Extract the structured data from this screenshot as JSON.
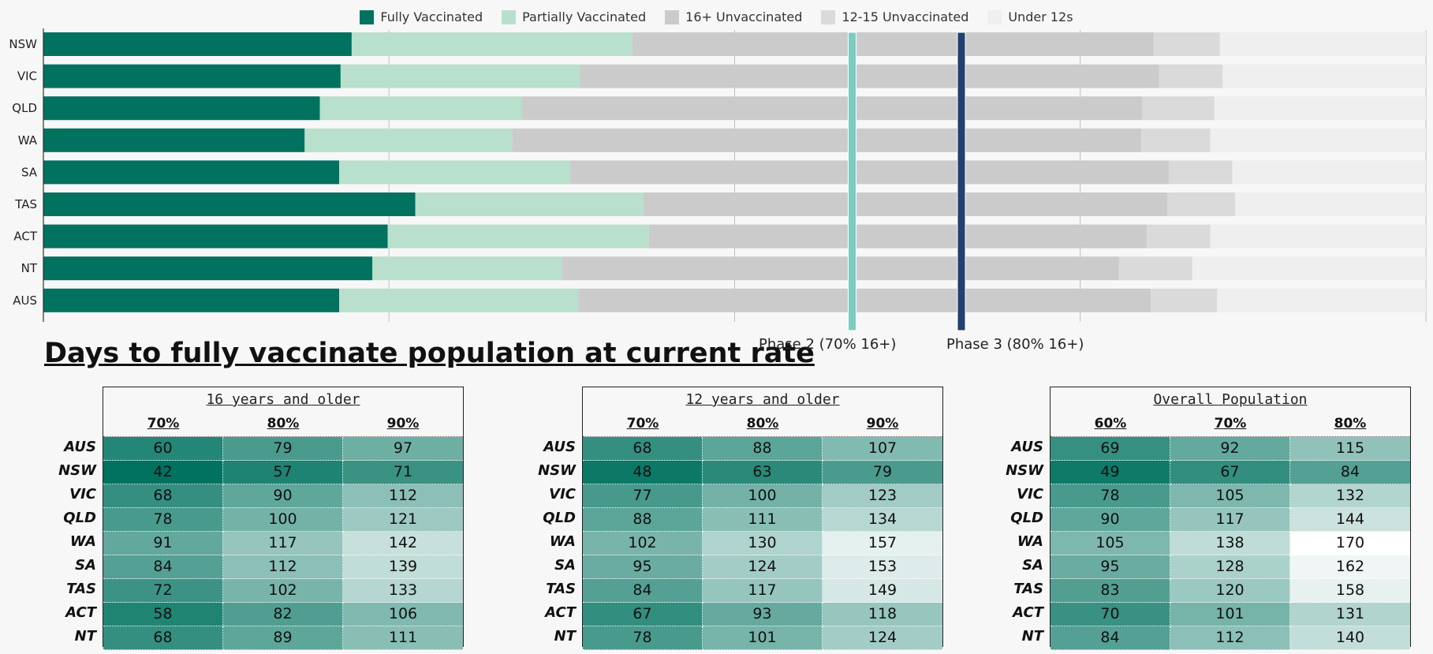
{
  "colors": {
    "fully": "#00725f",
    "partially": "#b8e0cc",
    "unvac16": "#cbcbcb",
    "unvac12": "#dadada",
    "under12": "#efefef",
    "phase2": "#7ecbc2",
    "phase3": "#23406e",
    "heat_dark": "#00725f",
    "heat_light": "#ffffff"
  },
  "legend": [
    {
      "key": "fully",
      "label": "Fully Vaccinated"
    },
    {
      "key": "partially",
      "label": "Partially Vaccinated"
    },
    {
      "key": "unvac16",
      "label": "16+ Unvaccinated"
    },
    {
      "key": "unvac12",
      "label": "12-15 Unvaccinated"
    },
    {
      "key": "under12",
      "label": "Under 12s"
    }
  ],
  "chart_data": [
    {
      "type": "bar",
      "orientation": "horizontal",
      "stacked": true,
      "categories": [
        "NSW",
        "VIC",
        "QLD",
        "WA",
        "SA",
        "TAS",
        "ACT",
        "NT",
        "AUS"
      ],
      "series": [
        {
          "name": "Fully Vaccinated",
          "values": [
            22.3,
            21.5,
            20.0,
            18.9,
            21.4,
            26.9,
            24.9,
            23.8,
            21.4
          ]
        },
        {
          "name": "Partially Vaccinated",
          "values": [
            20.3,
            17.3,
            14.6,
            15.0,
            16.7,
            16.5,
            18.9,
            13.7,
            17.3
          ]
        },
        {
          "name": "16+ Unvaccinated",
          "values": [
            37.7,
            41.9,
            44.9,
            45.5,
            43.3,
            37.9,
            36.0,
            40.3,
            41.4
          ]
        },
        {
          "name": "12-15 Unvaccinated",
          "values": [
            4.8,
            4.6,
            5.2,
            5.0,
            4.6,
            4.9,
            4.6,
            5.3,
            4.8
          ]
        },
        {
          "name": "Under 12s",
          "values": [
            14.9,
            14.7,
            15.3,
            15.6,
            14.0,
            13.8,
            15.6,
            16.9,
            15.1
          ]
        }
      ],
      "xlim": [
        0,
        100
      ],
      "grid": true,
      "reference_lines": [
        {
          "label": "Phase 2 (70% 16+)",
          "x": 58.5,
          "color_key": "phase2"
        },
        {
          "label": "Phase 3 (80% 16+)",
          "x": 66.4,
          "color_key": "phase3"
        }
      ]
    },
    {
      "type": "table",
      "title": "Days to fully vaccinate population at current rate",
      "tables": [
        {
          "header": "16 years and older",
          "columns": [
            "70%",
            "80%",
            "90%"
          ],
          "rows": [
            {
              "label": "AUS",
              "values": [
                60,
                79,
                97
              ]
            },
            {
              "label": "NSW",
              "values": [
                42,
                57,
                71
              ]
            },
            {
              "label": "VIC",
              "values": [
                68,
                90,
                112
              ]
            },
            {
              "label": "QLD",
              "values": [
                78,
                100,
                121
              ]
            },
            {
              "label": "WA",
              "values": [
                91,
                117,
                142
              ]
            },
            {
              "label": "SA",
              "values": [
                84,
                112,
                139
              ]
            },
            {
              "label": "TAS",
              "values": [
                72,
                102,
                133
              ]
            },
            {
              "label": "ACT",
              "values": [
                58,
                82,
                106
              ]
            },
            {
              "label": "NT",
              "values": [
                68,
                89,
                111
              ]
            }
          ]
        },
        {
          "header": "12 years and older",
          "columns": [
            "70%",
            "80%",
            "90%"
          ],
          "rows": [
            {
              "label": "AUS",
              "values": [
                68,
                88,
                107
              ]
            },
            {
              "label": "NSW",
              "values": [
                48,
                63,
                79
              ]
            },
            {
              "label": "VIC",
              "values": [
                77,
                100,
                123
              ]
            },
            {
              "label": "QLD",
              "values": [
                88,
                111,
                134
              ]
            },
            {
              "label": "WA",
              "values": [
                102,
                130,
                157
              ]
            },
            {
              "label": "SA",
              "values": [
                95,
                124,
                153
              ]
            },
            {
              "label": "TAS",
              "values": [
                84,
                117,
                149
              ]
            },
            {
              "label": "ACT",
              "values": [
                67,
                93,
                118
              ]
            },
            {
              "label": "NT",
              "values": [
                78,
                101,
                124
              ]
            }
          ]
        },
        {
          "header": "Overall Population",
          "columns": [
            "60%",
            "70%",
            "80%"
          ],
          "rows": [
            {
              "label": "AUS",
              "values": [
                69,
                92,
                115
              ]
            },
            {
              "label": "NSW",
              "values": [
                49,
                67,
                84
              ]
            },
            {
              "label": "VIC",
              "values": [
                78,
                105,
                132
              ]
            },
            {
              "label": "QLD",
              "values": [
                90,
                117,
                144
              ]
            },
            {
              "label": "WA",
              "values": [
                105,
                138,
                170
              ]
            },
            {
              "label": "SA",
              "values": [
                95,
                128,
                162
              ]
            },
            {
              "label": "TAS",
              "values": [
                83,
                120,
                158
              ]
            },
            {
              "label": "ACT",
              "values": [
                70,
                101,
                131
              ]
            },
            {
              "label": "NT",
              "values": [
                84,
                112,
                140
              ]
            }
          ]
        }
      ]
    }
  ]
}
